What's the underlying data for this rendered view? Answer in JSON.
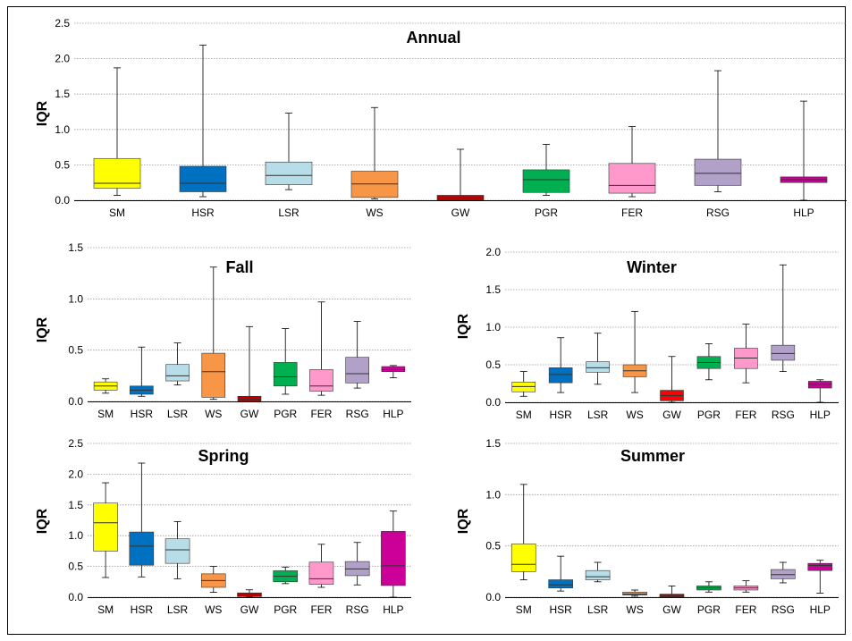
{
  "chart_data": [
    {
      "type": "boxplot",
      "title": "Annual",
      "ylabel": "IQR",
      "ylim": [
        0,
        2.5
      ],
      "yticks": [
        "0.0",
        "0.5",
        "1.0",
        "1.5",
        "2.0",
        "2.5"
      ],
      "categories": [
        "SM",
        "HSR",
        "LSR",
        "WS",
        "GW",
        "PGR",
        "FER",
        "RSG",
        "HLP"
      ],
      "colors": [
        "#FFFF00",
        "#0070C0",
        "#B7DDE8",
        "#F79646",
        "#C00000",
        "#00B050",
        "#FF99CC",
        "#B1A0C7",
        "#CC0099"
      ],
      "boxes": [
        {
          "min": 0.07,
          "q1": 0.17,
          "median": 0.24,
          "q3": 0.59,
          "max": 1.87
        },
        {
          "min": 0.05,
          "q1": 0.12,
          "median": 0.24,
          "q3": 0.48,
          "max": 2.19
        },
        {
          "min": 0.15,
          "q1": 0.22,
          "median": 0.35,
          "q3": 0.54,
          "max": 1.23
        },
        {
          "min": 0.02,
          "q1": 0.04,
          "median": 0.23,
          "q3": 0.41,
          "max": 1.31
        },
        {
          "min": 0.0,
          "q1": 0.0,
          "median": 0.03,
          "q3": 0.07,
          "max": 0.72
        },
        {
          "min": 0.07,
          "q1": 0.11,
          "median": 0.29,
          "q3": 0.43,
          "max": 0.79
        },
        {
          "min": 0.05,
          "q1": 0.1,
          "median": 0.21,
          "q3": 0.52,
          "max": 1.04
        },
        {
          "min": 0.12,
          "q1": 0.21,
          "median": 0.38,
          "q3": 0.58,
          "max": 1.83
        },
        {
          "min": 0.0,
          "q1": 0.25,
          "median": 0.29,
          "q3": 0.33,
          "max": 1.4
        }
      ]
    },
    {
      "type": "boxplot",
      "title": "Fall",
      "ylabel": "IQR",
      "ylim": [
        0,
        1.5
      ],
      "yticks": [
        "0.0",
        "0.5",
        "1.0",
        "1.5"
      ],
      "categories": [
        "SM",
        "HSR",
        "LSR",
        "WS",
        "GW",
        "PGR",
        "FER",
        "RSG",
        "HLP"
      ],
      "colors": [
        "#FFFF00",
        "#0070C0",
        "#B7DDE8",
        "#F79646",
        "#C00000",
        "#00B050",
        "#FF99CC",
        "#B1A0C7",
        "#CC0099"
      ],
      "boxes": [
        {
          "min": 0.08,
          "q1": 0.11,
          "median": 0.15,
          "q3": 0.19,
          "max": 0.22
        },
        {
          "min": 0.05,
          "q1": 0.07,
          "median": 0.11,
          "q3": 0.15,
          "max": 0.53
        },
        {
          "min": 0.16,
          "q1": 0.2,
          "median": 0.25,
          "q3": 0.36,
          "max": 0.57
        },
        {
          "min": 0.02,
          "q1": 0.04,
          "median": 0.29,
          "q3": 0.47,
          "max": 1.31
        },
        {
          "min": 0.0,
          "q1": 0.0,
          "median": 0.02,
          "q3": 0.05,
          "max": 0.73
        },
        {
          "min": 0.07,
          "q1": 0.15,
          "median": 0.24,
          "q3": 0.38,
          "max": 0.71
        },
        {
          "min": 0.06,
          "q1": 0.1,
          "median": 0.15,
          "q3": 0.31,
          "max": 0.97
        },
        {
          "min": 0.13,
          "q1": 0.18,
          "median": 0.27,
          "q3": 0.43,
          "max": 0.78
        },
        {
          "min": 0.23,
          "q1": 0.29,
          "median": 0.31,
          "q3": 0.34,
          "max": 0.35
        }
      ]
    },
    {
      "type": "boxplot",
      "title": "Winter",
      "ylabel": "IQR",
      "ylim": [
        0,
        2.0
      ],
      "yticks": [
        "0.0",
        "0.5",
        "1.0",
        "1.5",
        "2.0"
      ],
      "categories": [
        "SM",
        "HSR",
        "LSR",
        "WS",
        "GW",
        "PGR",
        "FER",
        "RSG",
        "HLP"
      ],
      "colors": [
        "#FFFF00",
        "#0070C0",
        "#B7DDE8",
        "#F79646",
        "#FF0000",
        "#00B050",
        "#FF99CC",
        "#B1A0C7",
        "#CC0099"
      ],
      "boxes": [
        {
          "min": 0.08,
          "q1": 0.14,
          "median": 0.21,
          "q3": 0.27,
          "max": 0.41
        },
        {
          "min": 0.13,
          "q1": 0.26,
          "median": 0.37,
          "q3": 0.46,
          "max": 0.86
        },
        {
          "min": 0.24,
          "q1": 0.4,
          "median": 0.46,
          "q3": 0.54,
          "max": 0.92
        },
        {
          "min": 0.13,
          "q1": 0.34,
          "median": 0.42,
          "q3": 0.5,
          "max": 1.21
        },
        {
          "min": 0.0,
          "q1": 0.02,
          "median": 0.09,
          "q3": 0.16,
          "max": 0.61
        },
        {
          "min": 0.3,
          "q1": 0.45,
          "median": 0.53,
          "q3": 0.61,
          "max": 0.78
        },
        {
          "min": 0.26,
          "q1": 0.45,
          "median": 0.59,
          "q3": 0.72,
          "max": 1.04
        },
        {
          "min": 0.41,
          "q1": 0.56,
          "median": 0.65,
          "q3": 0.76,
          "max": 1.83
        },
        {
          "min": 0.0,
          "q1": 0.19,
          "median": 0.24,
          "q3": 0.28,
          "max": 0.3
        }
      ]
    },
    {
      "type": "boxplot",
      "title": "Spring",
      "ylabel": "IQR",
      "ylim": [
        0,
        2.5
      ],
      "yticks": [
        "0.0",
        "0.5",
        "1.0",
        "1.5",
        "2.0",
        "2.5"
      ],
      "categories": [
        "SM",
        "HSR",
        "LSR",
        "WS",
        "GW",
        "PGR",
        "FER",
        "RSG",
        "HLP"
      ],
      "colors": [
        "#FFFF00",
        "#0070C0",
        "#B7DDE8",
        "#F79646",
        "#C00000",
        "#00B050",
        "#FF99CC",
        "#B1A0C7",
        "#CC0099"
      ],
      "boxes": [
        {
          "min": 0.32,
          "q1": 0.75,
          "median": 1.21,
          "q3": 1.53,
          "max": 1.86
        },
        {
          "min": 0.33,
          "q1": 0.52,
          "median": 0.83,
          "q3": 1.06,
          "max": 2.18
        },
        {
          "min": 0.3,
          "q1": 0.55,
          "median": 0.77,
          "q3": 0.95,
          "max": 1.23
        },
        {
          "min": 0.08,
          "q1": 0.16,
          "median": 0.27,
          "q3": 0.38,
          "max": 0.5
        },
        {
          "min": 0.0,
          "q1": 0.01,
          "median": 0.04,
          "q3": 0.07,
          "max": 0.12
        },
        {
          "min": 0.22,
          "q1": 0.25,
          "median": 0.34,
          "q3": 0.43,
          "max": 0.49
        },
        {
          "min": 0.16,
          "q1": 0.21,
          "median": 0.3,
          "q3": 0.57,
          "max": 0.86
        },
        {
          "min": 0.2,
          "q1": 0.35,
          "median": 0.46,
          "q3": 0.58,
          "max": 0.89
        },
        {
          "min": 0.0,
          "q1": 0.19,
          "median": 0.51,
          "q3": 1.07,
          "max": 1.4
        }
      ]
    },
    {
      "type": "boxplot",
      "title": "Summer",
      "ylabel": "IQR",
      "ylim": [
        0,
        1.5
      ],
      "yticks": [
        "0.0",
        "0.5",
        "1.0",
        "1.5"
      ],
      "categories": [
        "SM",
        "HSR",
        "LSR",
        "WS",
        "GW",
        "PGR",
        "FER",
        "RSG",
        "HLP"
      ],
      "colors": [
        "#FFFF00",
        "#0070C0",
        "#B7DDE8",
        "#F79646",
        "#C00000",
        "#00B050",
        "#FF99CC",
        "#B1A0C7",
        "#CC0099"
      ],
      "boxes": [
        {
          "min": 0.17,
          "q1": 0.25,
          "median": 0.32,
          "q3": 0.52,
          "max": 1.1
        },
        {
          "min": 0.06,
          "q1": 0.09,
          "median": 0.12,
          "q3": 0.17,
          "max": 0.4
        },
        {
          "min": 0.15,
          "q1": 0.17,
          "median": 0.2,
          "q3": 0.26,
          "max": 0.34
        },
        {
          "min": 0.01,
          "q1": 0.02,
          "median": 0.03,
          "q3": 0.05,
          "max": 0.07
        },
        {
          "min": 0.0,
          "q1": 0.0,
          "median": 0.01,
          "q3": 0.03,
          "max": 0.11
        },
        {
          "min": 0.05,
          "q1": 0.07,
          "median": 0.09,
          "q3": 0.11,
          "max": 0.15
        },
        {
          "min": 0.05,
          "q1": 0.07,
          "median": 0.09,
          "q3": 0.11,
          "max": 0.16
        },
        {
          "min": 0.14,
          "q1": 0.18,
          "median": 0.22,
          "q3": 0.27,
          "max": 0.34
        },
        {
          "min": 0.04,
          "q1": 0.26,
          "median": 0.31,
          "q3": 0.33,
          "max": 0.36
        }
      ]
    }
  ]
}
